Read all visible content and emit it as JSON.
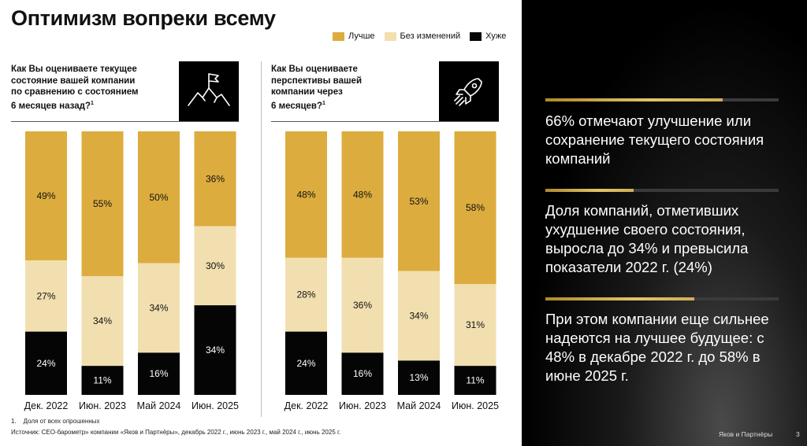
{
  "title": "Оптимизм вопреки всему",
  "legend": [
    {
      "label": "Лучше",
      "color": "#dcac3e"
    },
    {
      "label": "Без изменений",
      "color": "#f2dfb0"
    },
    {
      "label": "Хуже",
      "color": "#050505"
    }
  ],
  "questions": [
    {
      "lines": [
        "Как Вы оцениваете текущее",
        "состояние вашей компании",
        "по сравнению с состоянием",
        "6 месяцев назад?"
      ],
      "sup": "1",
      "icon": "mountain-flag-icon"
    },
    {
      "lines": [
        "Как Вы оцениваете",
        "перспективы вашей",
        "компании через",
        "6 месяцев?"
      ],
      "sup": "1",
      "icon": "rocket-icon"
    }
  ],
  "chart_data": [
    {
      "type": "bar",
      "stacked": true,
      "categories": [
        "Дек. 2022",
        "Июн. 2023",
        "Май 2024",
        "Июн. 2025"
      ],
      "series": [
        {
          "name": "Лучше",
          "values": [
            49,
            55,
            50,
            36
          ]
        },
        {
          "name": "Без изменений",
          "values": [
            27,
            34,
            34,
            30
          ]
        },
        {
          "name": "Хуже",
          "values": [
            24,
            11,
            16,
            34
          ]
        }
      ],
      "unit": "%"
    },
    {
      "type": "bar",
      "stacked": true,
      "categories": [
        "Дек. 2022",
        "Июн. 2023",
        "Май 2024",
        "Июн. 2025"
      ],
      "series": [
        {
          "name": "Лучше",
          "values": [
            48,
            48,
            53,
            58
          ]
        },
        {
          "name": "Без изменений",
          "values": [
            28,
            36,
            34,
            31
          ]
        },
        {
          "name": "Хуже",
          "values": [
            24,
            16,
            13,
            11
          ]
        }
      ],
      "unit": "%"
    }
  ],
  "footnote": {
    "num": "1.",
    "text": "Доля от всех опрошенных"
  },
  "source": "Источник: CEO-барометр» компании «Яков и Партнёры», декабрь 2022 г., июнь 2023 г., май 2024 г., июнь 2025 г.",
  "insights": [
    {
      "text": "66% отмечают улучшение или сохранение текущего состояния компаний",
      "progress": 0.76
    },
    {
      "text": "Доля компаний, отметивших ухудшение своего состояния, выросла до 34% и превысила показатели 2022 г. (24%)",
      "progress": 0.38
    },
    {
      "text": "При этом компании еще сильнее надеются на лучшее будущее: с 48% в декабре 2022 г. до 58% в июне 2025 г.",
      "progress": 0.64
    }
  ],
  "brand": "Яков и Партнёры",
  "page_number": "3"
}
